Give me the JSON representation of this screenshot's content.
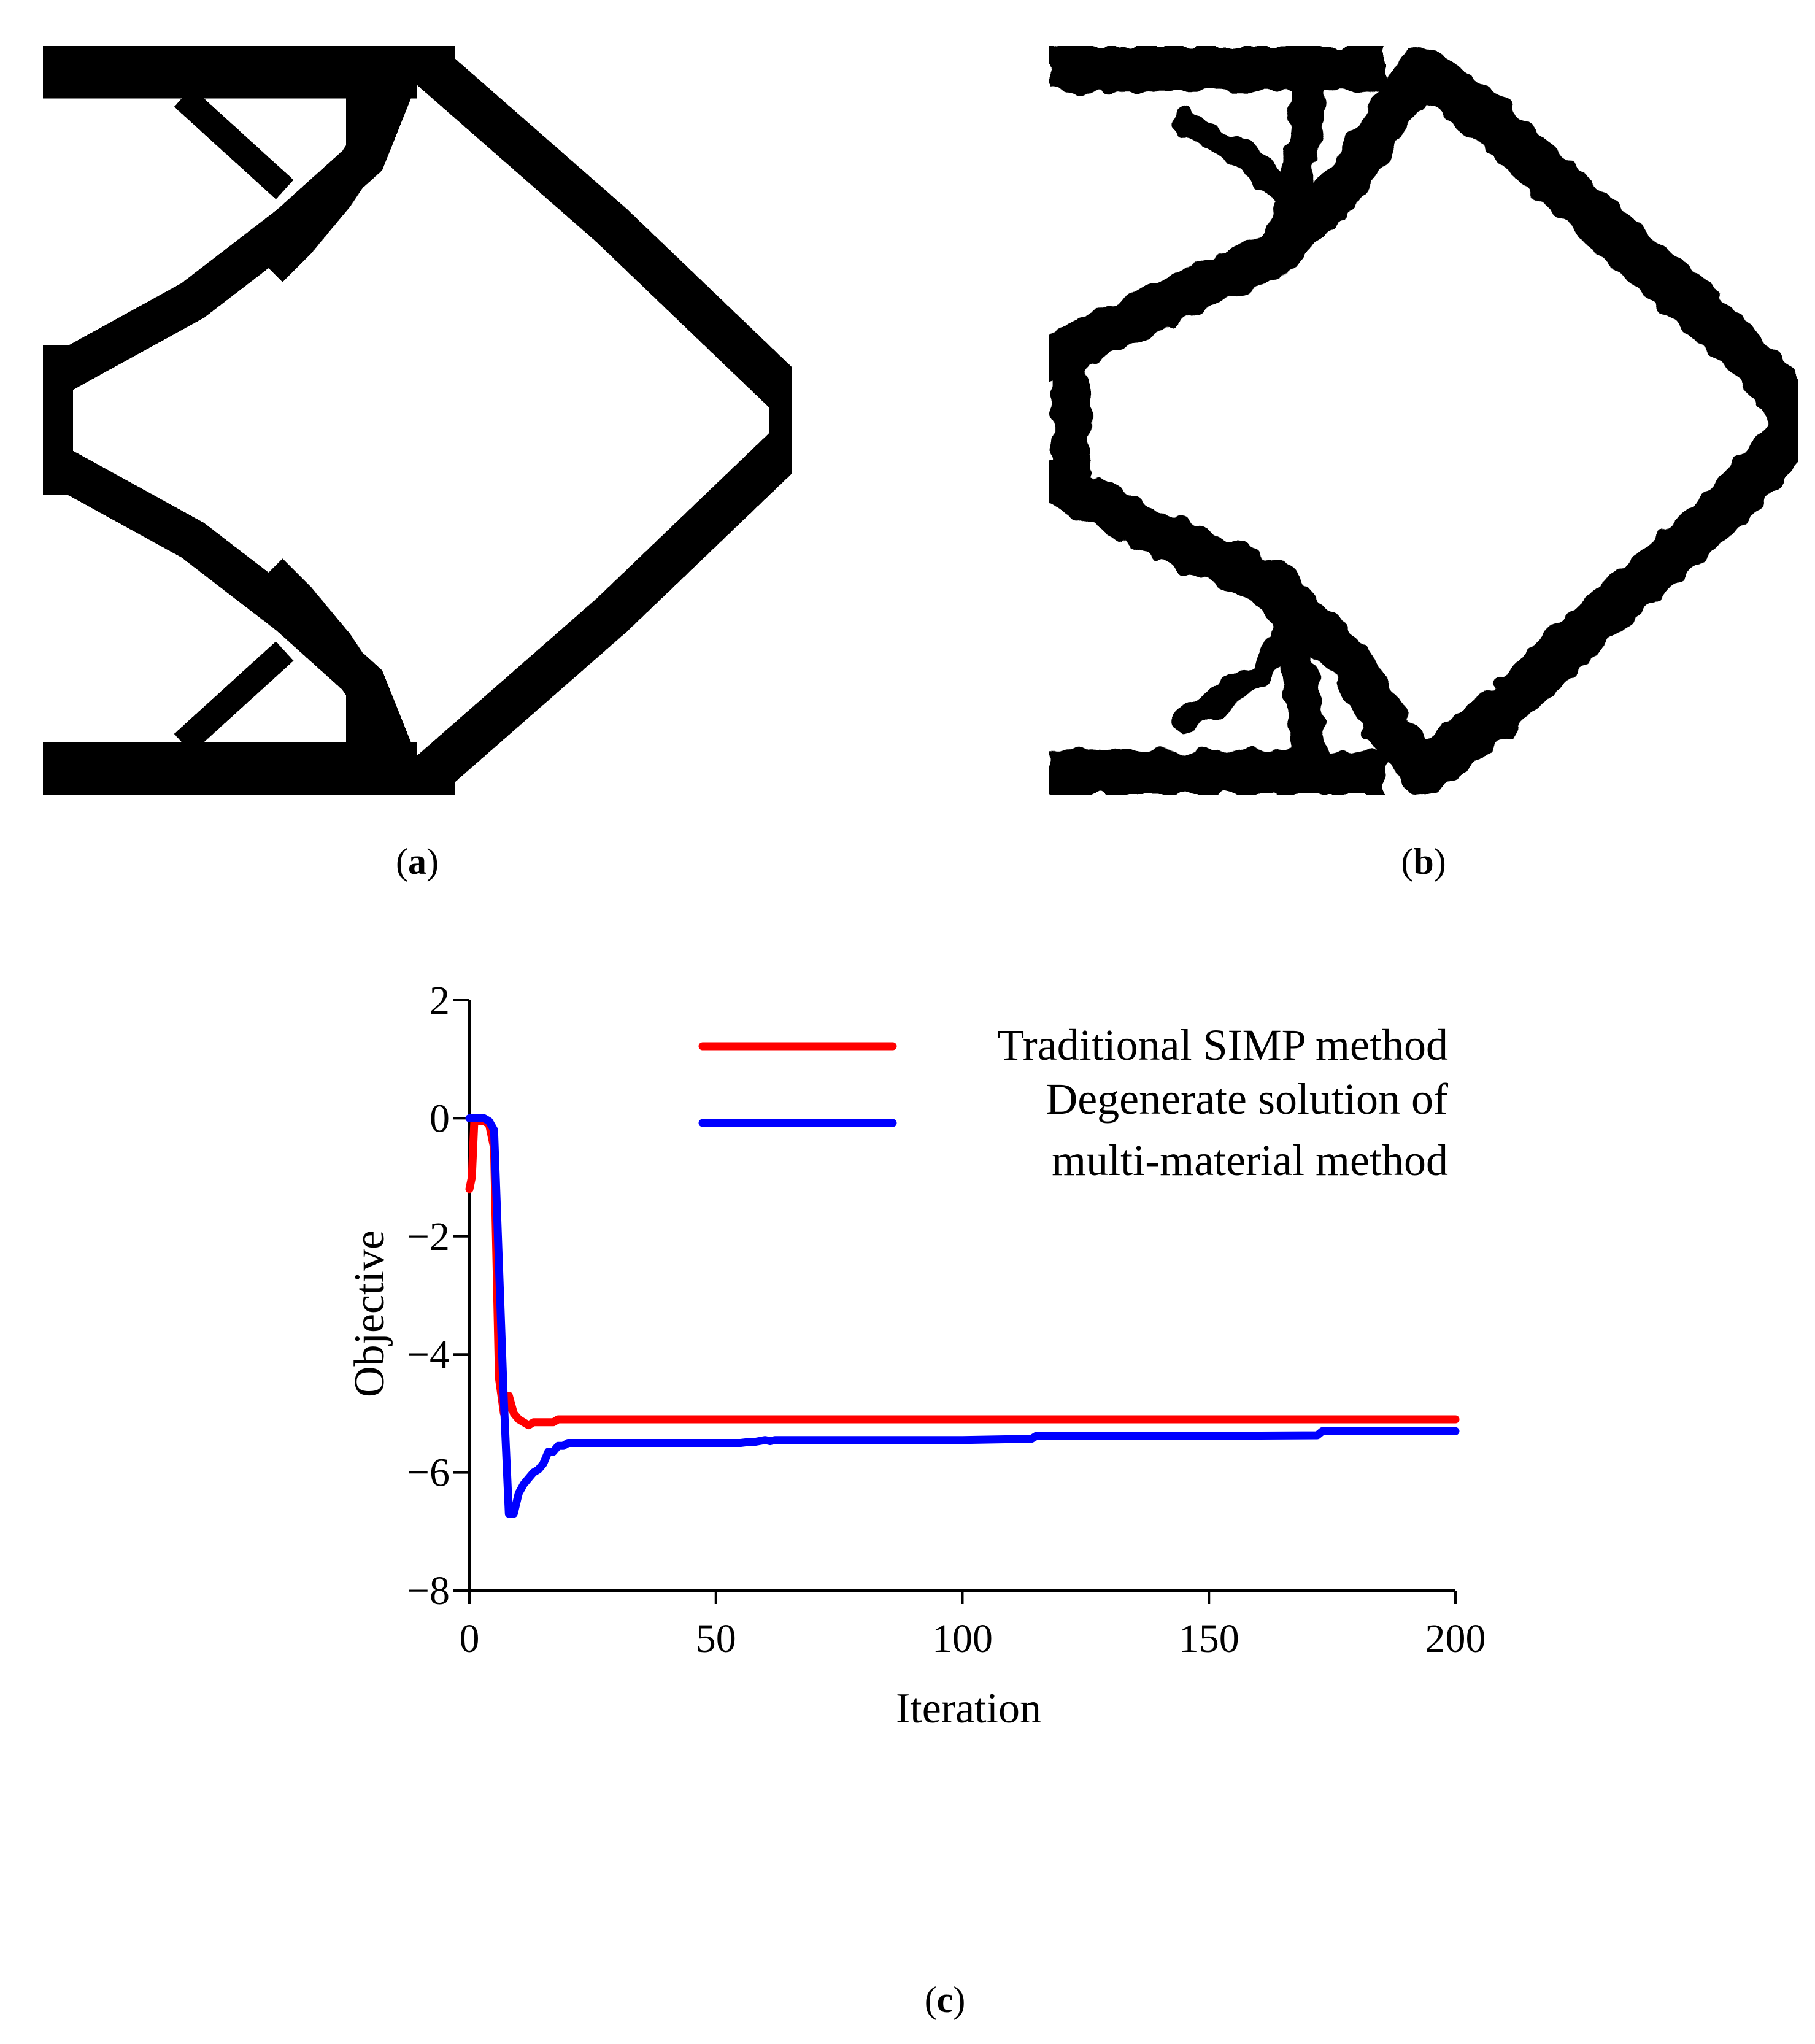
{
  "panels": {
    "a": {
      "label": "a"
    },
    "b": {
      "label": "b"
    },
    "c": {
      "label": "c"
    }
  },
  "colors": {
    "red": "#ff0000",
    "blue": "#0000ff",
    "black": "#000000"
  },
  "chart_data": {
    "type": "line",
    "title": "",
    "xlabel": "Iteration",
    "ylabel": "Objective",
    "xlim": [
      0,
      200
    ],
    "ylim": [
      -8,
      2
    ],
    "xticks": [
      0,
      50,
      100,
      150,
      200
    ],
    "yticks": [
      2,
      0,
      -2,
      -4,
      -6,
      -8
    ],
    "ytick_labels": [
      "2",
      "0",
      "−2",
      "−4",
      "−6",
      "−8"
    ],
    "grid": false,
    "legend_position": "top-right",
    "series": [
      {
        "name": "Traditional SIMP method",
        "color": "#ff0000",
        "x": [
          0,
          0.5,
          1,
          2,
          3,
          4,
          5,
          6,
          7,
          8,
          9,
          10,
          11,
          12,
          13,
          14,
          15,
          17,
          18,
          20,
          30,
          50,
          100,
          150,
          200
        ],
        "y": [
          -1.2,
          -1.0,
          -0.05,
          -0.05,
          -0.05,
          -0.1,
          -0.5,
          -4.4,
          -5.0,
          -4.7,
          -5.0,
          -5.1,
          -5.15,
          -5.2,
          -5.15,
          -5.15,
          -5.15,
          -5.15,
          -5.1,
          -5.1,
          -5.1,
          -5.1,
          -5.1,
          -5.1,
          -5.1
        ]
      },
      {
        "name": "Degenerate solution of multi-material method",
        "color": "#0000ff",
        "x": [
          0,
          1,
          2,
          3,
          4,
          5,
          6,
          7,
          8,
          9,
          10,
          11,
          12,
          13,
          14,
          15,
          16,
          17,
          18,
          19,
          20,
          30,
          55,
          57,
          58,
          60,
          61,
          62,
          100,
          114,
          115,
          150,
          172,
          173,
          200
        ],
        "y": [
          0,
          0,
          0,
          0,
          -0.05,
          -0.2,
          -2.5,
          -4.8,
          -6.7,
          -6.7,
          -6.35,
          -6.2,
          -6.1,
          -6.0,
          -5.95,
          -5.85,
          -5.65,
          -5.65,
          -5.55,
          -5.55,
          -5.5,
          -5.5,
          -5.5,
          -5.48,
          -5.48,
          -5.45,
          -5.47,
          -5.45,
          -5.45,
          -5.43,
          -5.38,
          -5.38,
          -5.37,
          -5.3,
          -5.3
        ]
      }
    ]
  }
}
